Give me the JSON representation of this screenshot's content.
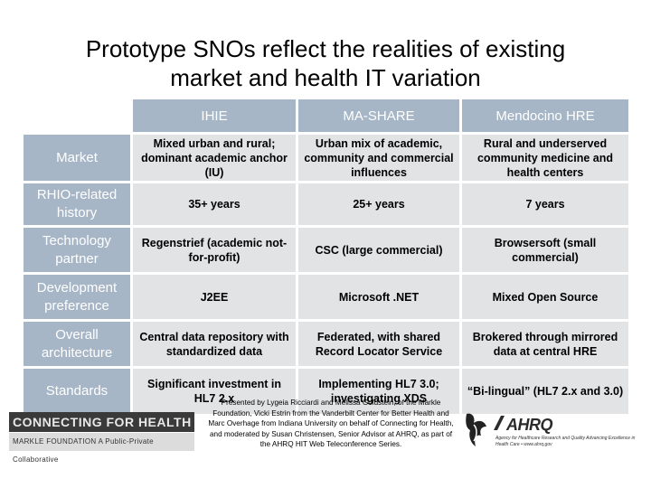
{
  "title_line1": "Prototype SNOs reflect the realities of existing",
  "title_line2": "market and health IT variation",
  "columns": [
    "IHIE",
    "MA-SHARE",
    "Mendocino HRE"
  ],
  "rows": [
    {
      "label": "Market",
      "cells": [
        "Mixed urban and rural; dominant academic anchor (IU)",
        "Urban mix of academic, community and commercial influences",
        "Rural and underserved community medicine and health centers"
      ]
    },
    {
      "label": "RHIO-related history",
      "cells": [
        "35+ years",
        "25+ years",
        "7 years"
      ]
    },
    {
      "label": "Technology partner",
      "cells": [
        "Regenstrief (academic not-for-profit)",
        "CSC (large commercial)",
        "Browsersoft (small commercial)"
      ]
    },
    {
      "label": "Development preference",
      "cells": [
        "J2EE",
        "Microsoft .NET",
        "Mixed Open Source"
      ]
    },
    {
      "label": "Overall architecture",
      "cells": [
        "Central data repository with standardized data",
        "Federated, with shared Record Locator Service",
        "Brokered through mirrored data at central HRE"
      ]
    },
    {
      "label": "Standards",
      "cells": [
        "Significant investment in HL7 2.x",
        "Implementing HL7 3.0; investigating XDS",
        "“Bi-lingual” (HL7 2.x and 3.0)"
      ]
    }
  ],
  "footer": {
    "cfh_name": "CONNECTING FOR HEALTH",
    "cfh_sub": "MARKLE FOUNDATION   A Public-Private Collaborative",
    "presenter": "Presented by Lygeia Ricciardi and Melissa Goldstein, of the Markle Foundation, Vicki Estrin from the Vanderbilt Center for Better Health and Marc Overhage from Indiana University on behalf of Connecting for Health, and moderated by Susan Christensen, Senior Advisor at AHRQ, as part of the AHRQ HIT Web Teleconference Series.",
    "ahrq_name": "AHRQ",
    "ahrq_sub": "Agency for Healthcare Research and Quality Advancing Excellence in Health Care • www.ahrq.gov"
  },
  "colors": {
    "header_bg": "#a6b6c7",
    "cell_bg": "#e2e3e5"
  }
}
